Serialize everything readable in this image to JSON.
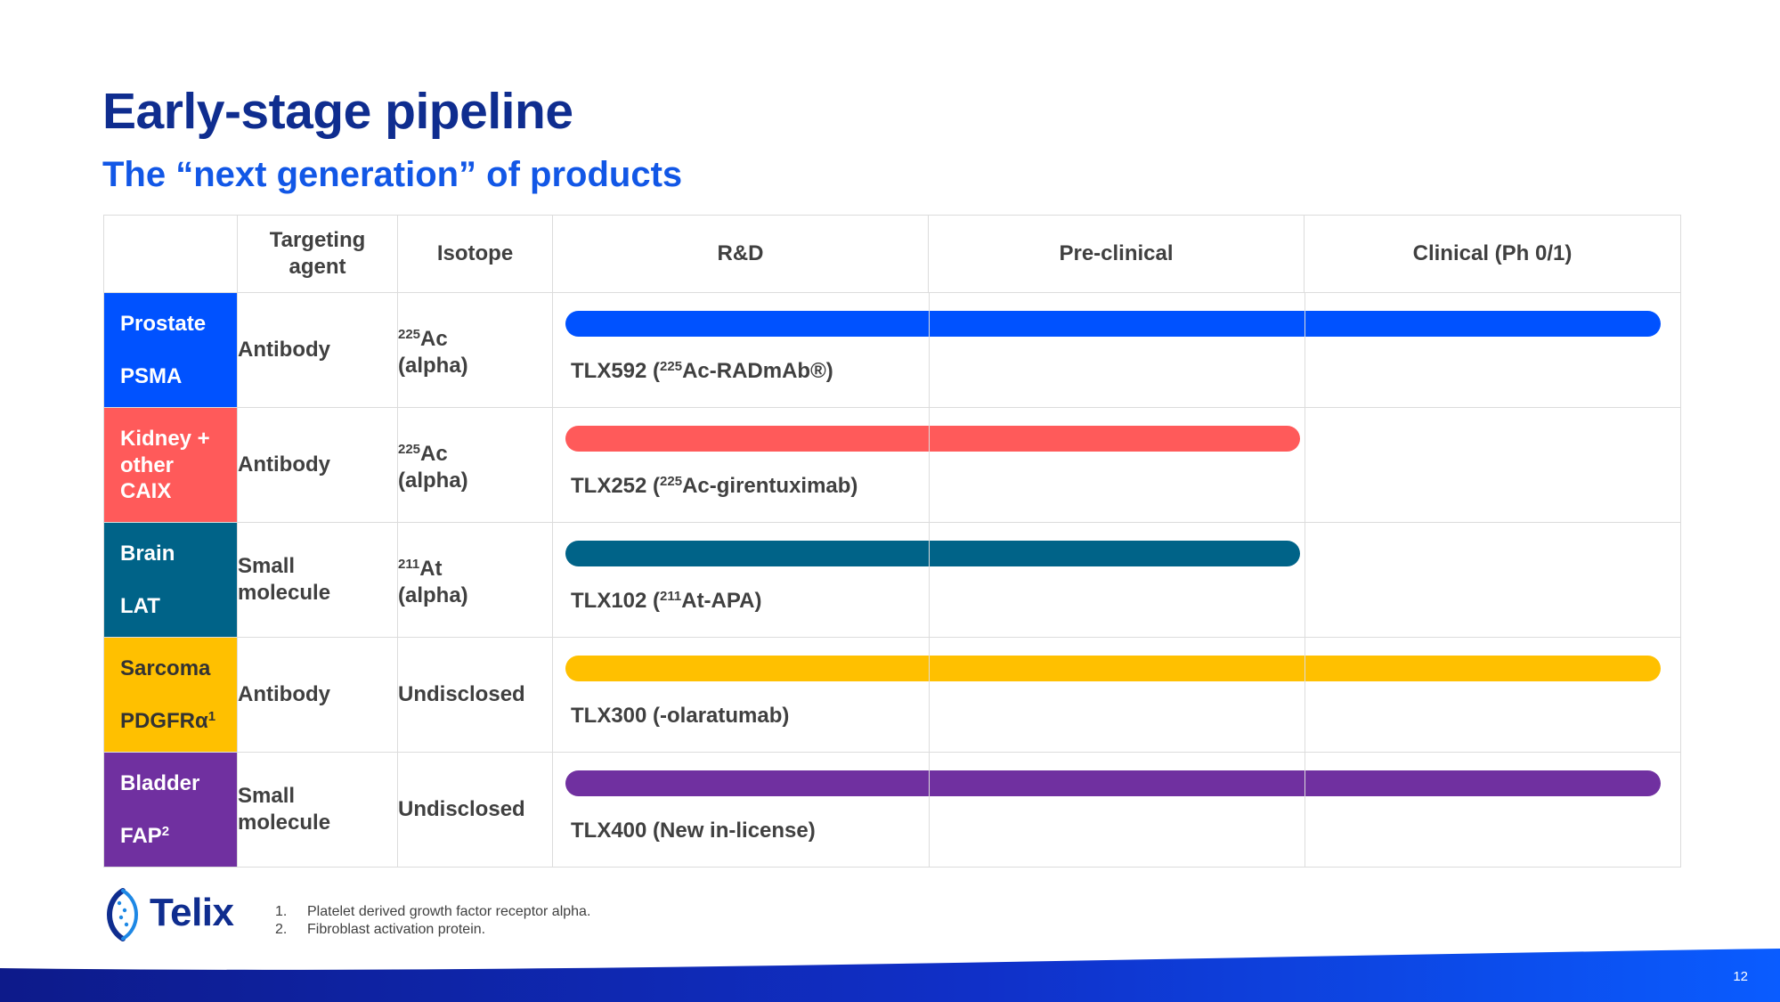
{
  "title": "Early-stage pipeline",
  "subtitle": "The “next generation” of products",
  "headers": {
    "indication": "",
    "agent": "Targeting agent",
    "isotope": "Isotope",
    "rd": "R&D",
    "preclinical": "Pre-clinical",
    "clinical": "Clinical (Ph 0/1)"
  },
  "rows": [
    {
      "indication": "Prostate",
      "target": "PSMA",
      "target_sup": "",
      "color": "#0052ff",
      "agent": "Antibody",
      "isotope_sup": "225",
      "isotope_el": "Ac",
      "isotope_type": "(alpha)",
      "product_pre": "TLX592 (",
      "product_sup": "225",
      "product_post": "Ac-RADmAb®)",
      "stages": 3
    },
    {
      "indication": "Kidney + other",
      "target": "CAIX",
      "target_sup": "",
      "color": "#ff5a5a",
      "agent": "Antibody",
      "isotope_sup": "225",
      "isotope_el": "Ac",
      "isotope_type": "(alpha)",
      "product_pre": "TLX252 (",
      "product_sup": "225",
      "product_post": "Ac-girentuximab)",
      "stages": 2
    },
    {
      "indication": "Brain",
      "target": "LAT",
      "target_sup": "",
      "color": "#006388",
      "agent": "Small molecule",
      "isotope_sup": "211",
      "isotope_el": "At",
      "isotope_type": "(alpha)",
      "product_pre": "TLX102 (",
      "product_sup": "211",
      "product_post": "At-APA)",
      "stages": 2
    },
    {
      "indication": "Sarcoma",
      "target": "PDGFRα",
      "target_sup": "1",
      "color": "#ffc000",
      "agent": "Antibody",
      "isotope_sup": "",
      "isotope_el": "Undisclosed",
      "isotope_type": "",
      "product_pre": "TLX300 (-olaratumab)",
      "product_sup": "",
      "product_post": "",
      "stages": 3
    },
    {
      "indication": "Bladder",
      "target": "FAP",
      "target_sup": "2",
      "color": "#7030a0",
      "agent": "Small molecule",
      "isotope_sup": "",
      "isotope_el": "Undisclosed",
      "isotope_type": "",
      "product_pre": "TLX400 (New in-license)",
      "product_sup": "",
      "product_post": "",
      "stages": 3
    }
  ],
  "footnotes": [
    {
      "num": "1.",
      "text": "Platelet derived growth factor receptor alpha."
    },
    {
      "num": "2.",
      "text": "Fibroblast activation protein."
    }
  ],
  "logo_text": "Telix",
  "page_number": "12",
  "colors": {
    "title": "#0f2d8f",
    "subtitle": "#1257e6",
    "sarcoma_text": "#333333"
  }
}
